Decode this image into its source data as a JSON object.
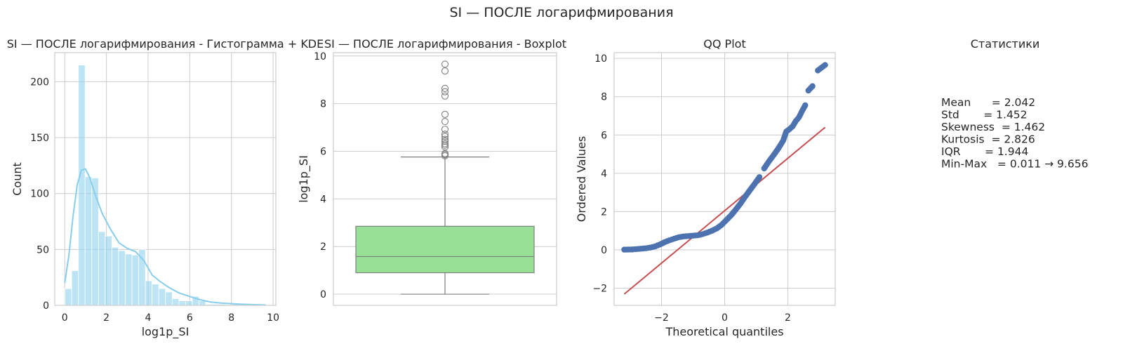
{
  "suptitle": "SI — ПОСЛЕ логарифмирования",
  "chart_data": [
    {
      "type": "bar",
      "title": "SI — ПОСЛЕ логарифмирования - Гистограмма + KDE",
      "xlabel": "log1p_SI",
      "ylabel": "Count",
      "xlim": [
        -0.48,
        10.13
      ],
      "ylim": [
        0,
        226
      ],
      "xticks": [
        0,
        2,
        4,
        6,
        8,
        10
      ],
      "yticks": [
        0,
        50,
        100,
        150,
        200
      ],
      "grid": true,
      "colors": {
        "bar": "#87ceeb",
        "kde": "#87ceeb"
      },
      "bins": [
        {
          "x0": 0.011,
          "x1": 0.333,
          "count": 15
        },
        {
          "x0": 0.333,
          "x1": 0.654,
          "count": 31
        },
        {
          "x0": 0.654,
          "x1": 0.976,
          "count": 215
        },
        {
          "x0": 0.976,
          "x1": 1.297,
          "count": 115
        },
        {
          "x0": 1.297,
          "x1": 1.619,
          "count": 114
        },
        {
          "x0": 1.619,
          "x1": 1.94,
          "count": 66
        },
        {
          "x0": 1.94,
          "x1": 2.262,
          "count": 62
        },
        {
          "x0": 2.262,
          "x1": 2.583,
          "count": 52
        },
        {
          "x0": 2.583,
          "x1": 2.905,
          "count": 49
        },
        {
          "x0": 2.905,
          "x1": 3.226,
          "count": 46
        },
        {
          "x0": 3.226,
          "x1": 3.548,
          "count": 45
        },
        {
          "x0": 3.548,
          "x1": 3.869,
          "count": 50
        },
        {
          "x0": 3.869,
          "x1": 4.191,
          "count": 22
        },
        {
          "x0": 4.191,
          "x1": 4.512,
          "count": 19
        },
        {
          "x0": 4.512,
          "x1": 4.834,
          "count": 15
        },
        {
          "x0": 4.834,
          "x1": 5.155,
          "count": 12
        },
        {
          "x0": 5.155,
          "x1": 5.477,
          "count": 6
        },
        {
          "x0": 5.477,
          "x1": 5.798,
          "count": 4
        },
        {
          "x0": 5.798,
          "x1": 6.12,
          "count": 4
        },
        {
          "x0": 6.12,
          "x1": 6.441,
          "count": 8
        },
        {
          "x0": 6.441,
          "x1": 6.763,
          "count": 4
        },
        {
          "x0": 6.763,
          "x1": 7.084,
          "count": 1
        },
        {
          "x0": 7.084,
          "x1": 7.406,
          "count": 1
        },
        {
          "x0": 7.406,
          "x1": 7.727,
          "count": 1
        },
        {
          "x0": 7.727,
          "x1": 8.049,
          "count": 0
        },
        {
          "x0": 8.049,
          "x1": 8.37,
          "count": 1
        },
        {
          "x0": 8.37,
          "x1": 8.692,
          "count": 1
        },
        {
          "x0": 8.692,
          "x1": 9.013,
          "count": 0
        },
        {
          "x0": 9.013,
          "x1": 9.335,
          "count": 1
        },
        {
          "x0": 9.335,
          "x1": 9.656,
          "count": 1
        }
      ],
      "kde": {
        "x": [
          0.0,
          0.2,
          0.4,
          0.6,
          0.8,
          1.0,
          1.2,
          1.5,
          1.8,
          2.2,
          2.6,
          3.0,
          3.4,
          3.8,
          4.2,
          4.6,
          5.0,
          5.5,
          6.0,
          6.5,
          7.0,
          7.5,
          8.0,
          8.5,
          9.0,
          9.656
        ],
        "y": [
          20,
          45,
          80,
          108,
          121,
          122,
          114,
          97,
          82,
          68,
          56,
          51,
          48,
          40,
          27,
          21,
          16,
          11,
          8,
          5,
          3,
          2,
          1.5,
          1,
          0.7,
          0.3
        ]
      }
    },
    {
      "type": "box",
      "title": "SI — ПОСЛЕ логарифмирования - Boxplot",
      "ylabel": "log1p_SI",
      "ylim": [
        -0.47,
        10.14
      ],
      "yticks": [
        0,
        2,
        4,
        6,
        8,
        10
      ],
      "grid": true,
      "colors": {
        "box": "#98e095",
        "line": "#7f7f7f"
      },
      "whisker_low": 0.0,
      "q1": 0.9,
      "median": 1.58,
      "q3": 2.85,
      "whisker_high": 5.76,
      "outliers": [
        5.81,
        5.86,
        5.9,
        6.18,
        6.26,
        6.32,
        6.42,
        6.5,
        6.62,
        6.72,
        6.92,
        7.25,
        7.55,
        8.32,
        8.5,
        8.64,
        9.37,
        9.656
      ]
    },
    {
      "type": "scatter",
      "title": "QQ Plot",
      "xlabel": "Theoretical quantiles",
      "ylabel": "Ordered Values",
      "xlim": [
        -3.5,
        3.5
      ],
      "ylim": [
        -2.9,
        10.3
      ],
      "xticks": [
        -2,
        0,
        2
      ],
      "yticks": [
        -2,
        0,
        2,
        4,
        6,
        8,
        10
      ],
      "grid": true,
      "colors": {
        "points": "#4c72b0",
        "line": "#c44e52"
      },
      "points": {
        "x": [
          -3.18,
          -2.92,
          -2.78,
          -2.65,
          -2.5,
          -2.35,
          -2.2,
          -2.05,
          -1.9,
          -1.75,
          -1.6,
          -1.45,
          -1.3,
          -1.15,
          -1.0,
          -0.85,
          -0.7,
          -0.55,
          -0.4,
          -0.25,
          -0.1,
          0.05,
          0.2,
          0.35,
          0.5,
          0.65,
          0.8,
          0.95,
          1.1,
          1.25,
          1.4,
          1.55,
          1.7,
          1.85,
          1.95,
          2.05,
          2.15,
          2.25,
          2.35,
          2.45,
          2.55,
          2.65,
          2.78,
          2.95,
          3.18
        ],
        "y": [
          0.011,
          0.02,
          0.04,
          0.06,
          0.08,
          0.12,
          0.18,
          0.28,
          0.4,
          0.5,
          0.58,
          0.66,
          0.7,
          0.72,
          0.74,
          0.76,
          0.82,
          0.9,
          1.0,
          1.12,
          1.3,
          1.55,
          1.8,
          2.1,
          2.42,
          2.78,
          3.12,
          3.45,
          3.8,
          4.25,
          4.62,
          4.95,
          5.3,
          5.7,
          6.18,
          6.3,
          6.45,
          6.72,
          6.92,
          7.25,
          7.55,
          8.32,
          8.55,
          9.37,
          9.656
        ]
      },
      "fit_line": {
        "x": [
          -3.18,
          3.18
        ],
        "y": [
          -2.31,
          6.4
        ]
      }
    }
  ],
  "stats": {
    "title": "Статистики",
    "lines": [
      "Mean      = 2.042",
      "Std       = 1.452",
      "Skewness  = 1.462",
      "Kurtosis  = 2.826",
      "IQR       = 1.944",
      "Min-Max   = 0.011 → 9.656"
    ]
  }
}
